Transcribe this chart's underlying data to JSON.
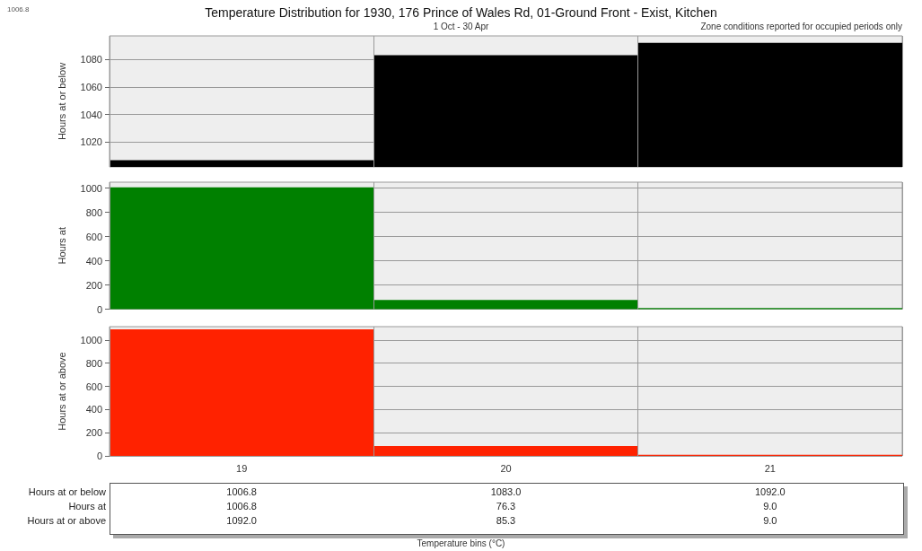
{
  "chart_data": [
    {
      "type": "bar",
      "title": "Temperature Distribution for 1930, 176 Prince of Wales Rd, 01-Ground Front - Exist, Kitchen",
      "subtitle": "1 Oct - 30 Apr",
      "annotations": [
        "1006.8",
        "Zone conditions reported for occupied periods only"
      ],
      "ylabel": "Hours at or below",
      "categories": [
        "19",
        "20",
        "21"
      ],
      "values": [
        1006.8,
        1083.0,
        1092.0
      ],
      "value_labels": [
        "1006.8",
        "1083.0",
        "1092.0"
      ],
      "color": "#000000",
      "ylim": [
        1002,
        1097
      ],
      "yticks": [
        1020,
        1040,
        1060,
        1080
      ],
      "grid": true,
      "tick_labels": "y"
    },
    {
      "type": "bar",
      "ylabel": "Hours at",
      "categories": [
        "19",
        "20",
        "21"
      ],
      "values": [
        1006.8,
        76.3,
        9.0
      ],
      "value_labels": [
        "1006.8",
        "76.3",
        "9.0"
      ],
      "color": "#008000",
      "ylim": [
        0,
        1050
      ],
      "yticks": [
        0,
        200,
        400,
        600,
        800,
        1000
      ],
      "grid": true,
      "tick_labels": "y"
    },
    {
      "type": "bar",
      "ylabel": "Hours at or above",
      "xlabel": "Temperature bins (°C)",
      "categories": [
        "19",
        "20",
        "21"
      ],
      "values": [
        1092.0,
        85.3,
        9.0
      ],
      "value_labels": [
        "1092.0",
        "85.3",
        "9.0"
      ],
      "color": "#ff2200",
      "ylim": [
        0,
        1115
      ],
      "yticks": [
        0,
        200,
        400,
        600,
        800,
        1000
      ],
      "grid": true
    }
  ]
}
